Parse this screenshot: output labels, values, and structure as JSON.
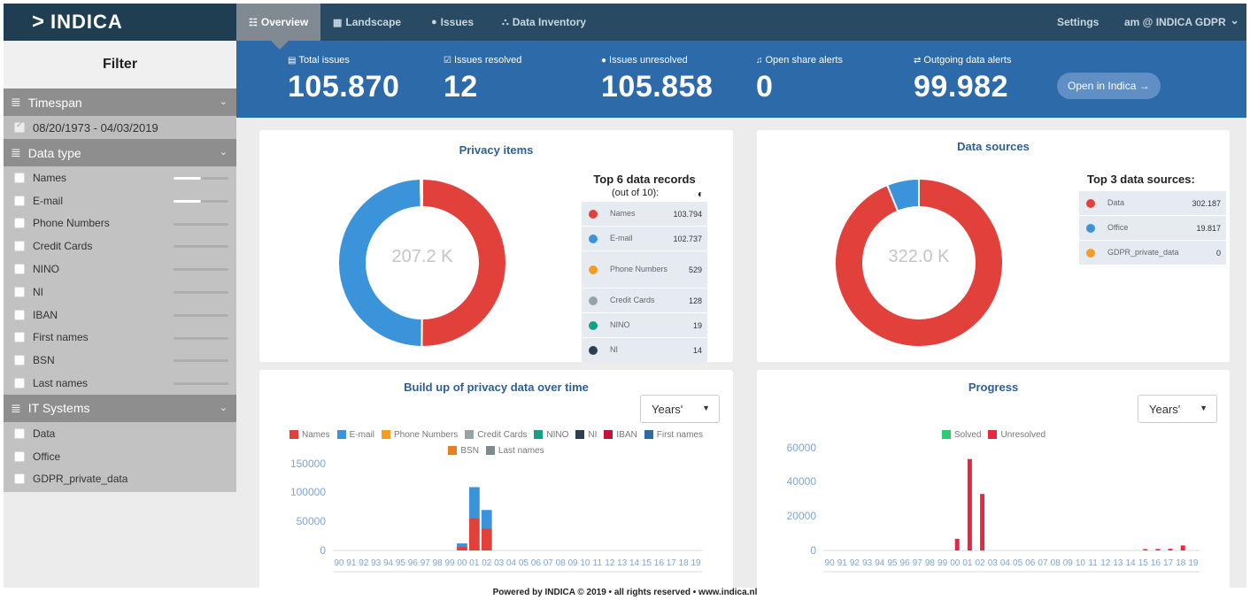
{
  "brand": {
    "chevron": ">",
    "name": "INDICA"
  },
  "nav": {
    "tabs": [
      {
        "icon": "☷",
        "label": "Overview"
      },
      {
        "icon": "▦",
        "label": "Landscape"
      },
      {
        "icon": "●",
        "label": "Issues"
      },
      {
        "icon": "⛬",
        "label": "Data Inventory"
      }
    ],
    "settings": "Settings",
    "user": "am @ INDICA GDPR",
    "user_caret": "⌄"
  },
  "sidebar": {
    "title": "Filter",
    "timespan": {
      "label": "Timespan",
      "value": "08/20/1973 - 04/03/2019"
    },
    "data_type": {
      "label": "Data type",
      "items": [
        {
          "label": "Names",
          "fill": 0.5
        },
        {
          "label": "E-mail",
          "fill": 0.5
        },
        {
          "label": "Phone Numbers",
          "fill": 0
        },
        {
          "label": "Credit Cards",
          "fill": 0
        },
        {
          "label": "NINO",
          "fill": 0
        },
        {
          "label": "NI",
          "fill": 0
        },
        {
          "label": "IBAN",
          "fill": 0
        },
        {
          "label": "First names",
          "fill": 0
        },
        {
          "label": "BSN",
          "fill": 0
        },
        {
          "label": "Last names",
          "fill": 0
        }
      ]
    },
    "it_systems": {
      "label": "IT Systems",
      "items": [
        "Data",
        "Office",
        "GDPR_private_data"
      ]
    }
  },
  "kpis": [
    {
      "icon": "▤",
      "label": "Total issues",
      "value": "105.870"
    },
    {
      "icon": "☑",
      "label": "Issues resolved",
      "value": "12"
    },
    {
      "icon": "●",
      "label": "Issues unresolved",
      "value": "105.858"
    },
    {
      "icon": "♫",
      "label": "Open share alerts",
      "value": "0"
    },
    {
      "icon": "⇄",
      "label": "Outgoing data alerts",
      "value": "99.982"
    }
  ],
  "open_button": "Open in Indica →",
  "privacy_items": {
    "title": "Privacy items",
    "center": "207.2 K",
    "table_title": "Top 6 data records",
    "table_sub": "(out of 10):",
    "table_icon": "◐",
    "rows": [
      {
        "name": "Names",
        "value": "103.794",
        "color": "#e2403a"
      },
      {
        "name": "E-mail",
        "value": "102.737",
        "color": "#3b93d9"
      },
      {
        "name": "Phone Numbers",
        "value": "529",
        "color": "#f39c26"
      },
      {
        "name": "Credit Cards",
        "value": "128",
        "color": "#95a5a6"
      },
      {
        "name": "NINO",
        "value": "19",
        "color": "#16a085"
      },
      {
        "name": "NI",
        "value": "14",
        "color": "#2c3e50"
      }
    ]
  },
  "data_sources": {
    "title": "Data sources",
    "center": "322.0 K",
    "table_title": "Top 3 data sources:",
    "rows": [
      {
        "name": "Data",
        "value": "302.187",
        "color": "#e2403a"
      },
      {
        "name": "Office",
        "value": "19.817",
        "color": "#3b93d9"
      },
      {
        "name": "GDPR_private_data",
        "value": "0",
        "color": "#f39c26"
      }
    ]
  },
  "buildup": {
    "title": "Build up of privacy data over time",
    "select": "Years'"
  },
  "progress": {
    "title": "Progress",
    "select": "Years'"
  },
  "chart_data": [
    {
      "type": "pie",
      "title": "Privacy items",
      "categories": [
        "Names",
        "E-mail",
        "Phone Numbers",
        "Credit Cards",
        "NINO",
        "NI"
      ],
      "values": [
        103794,
        102737,
        529,
        128,
        19,
        14
      ],
      "colors": [
        "#e2403a",
        "#3b93d9",
        "#f39c26",
        "#95a5a6",
        "#16a085",
        "#2c3e50"
      ]
    },
    {
      "type": "pie",
      "title": "Data sources",
      "categories": [
        "Data",
        "Office",
        "GDPR_private_data"
      ],
      "values": [
        302187,
        19817,
        0
      ],
      "colors": [
        "#e2403a",
        "#3b93d9",
        "#f39c26"
      ]
    },
    {
      "type": "bar",
      "title": "Build up of privacy data over time",
      "stacked": true,
      "categories": [
        "90",
        "91",
        "92",
        "93",
        "94",
        "95",
        "96",
        "97",
        "98",
        "99",
        "00",
        "01",
        "02",
        "03",
        "04",
        "05",
        "06",
        "07",
        "08",
        "09",
        "10",
        "11",
        "12",
        "13",
        "14",
        "15",
        "16",
        "17",
        "18",
        "19"
      ],
      "legend": [
        {
          "name": "Names",
          "color": "#e2403a"
        },
        {
          "name": "E-mail",
          "color": "#3b93d9"
        },
        {
          "name": "Phone Numbers",
          "color": "#f39c26"
        },
        {
          "name": "Credit Cards",
          "color": "#95a5a6"
        },
        {
          "name": "NINO",
          "color": "#16a085"
        },
        {
          "name": "NI",
          "color": "#2c3e50"
        },
        {
          "name": "IBAN",
          "color": "#c0143c"
        },
        {
          "name": "First names",
          "color": "#2e6aa6"
        },
        {
          "name": "BSN",
          "color": "#e67e22"
        },
        {
          "name": "Last names",
          "color": "#7f8c8d"
        }
      ],
      "series": [
        {
          "name": "Names",
          "color": "#e2403a",
          "values": [
            0,
            0,
            0,
            0,
            0,
            0,
            0,
            0,
            0,
            0,
            6000,
            55000,
            37000,
            0,
            0,
            0,
            0,
            0,
            0,
            0,
            0,
            0,
            0,
            0,
            0,
            0,
            0,
            0,
            0,
            0
          ]
        },
        {
          "name": "E-mail",
          "color": "#3b93d9",
          "values": [
            0,
            0,
            0,
            0,
            0,
            0,
            0,
            0,
            0,
            0,
            6000,
            53000,
            32000,
            0,
            0,
            0,
            0,
            0,
            0,
            0,
            0,
            0,
            0,
            0,
            0,
            0,
            0,
            0,
            0,
            0
          ]
        }
      ],
      "yticks": [
        "150000",
        "100000",
        "50000",
        "0"
      ],
      "ylim": [
        0,
        160000
      ]
    },
    {
      "type": "bar",
      "title": "Progress",
      "categories": [
        "90",
        "91",
        "92",
        "93",
        "94",
        "95",
        "96",
        "97",
        "98",
        "99",
        "00",
        "01",
        "02",
        "03",
        "04",
        "05",
        "06",
        "07",
        "08",
        "09",
        "10",
        "11",
        "12",
        "13",
        "14",
        "15",
        "16",
        "17",
        "18",
        "19"
      ],
      "legend": [
        {
          "name": "Solved",
          "color": "#2ecc71"
        },
        {
          "name": "Unresolved",
          "color": "#e8263f"
        }
      ],
      "series": [
        {
          "name": "Solved",
          "color": "#2ecc71",
          "values": [
            0,
            0,
            0,
            0,
            0,
            0,
            0,
            0,
            0,
            0,
            0,
            0,
            0,
            0,
            0,
            0,
            0,
            0,
            0,
            0,
            0,
            0,
            0,
            0,
            0,
            0,
            0,
            0,
            0,
            0
          ]
        },
        {
          "name": "Unresolved",
          "color": "#e8263f",
          "values": [
            0,
            0,
            0,
            0,
            0,
            0,
            0,
            0,
            0,
            0,
            7000,
            55000,
            34000,
            0,
            0,
            0,
            0,
            0,
            0,
            0,
            0,
            0,
            0,
            0,
            0,
            800,
            900,
            1000,
            3000,
            0
          ]
        }
      ],
      "yticks": [
        "60000",
        "40000",
        "20000",
        "0"
      ],
      "ylim": [
        0,
        65000
      ]
    }
  ],
  "footer": "Powered by INDICA © 2019 • all rights reserved • www.indica.nl"
}
